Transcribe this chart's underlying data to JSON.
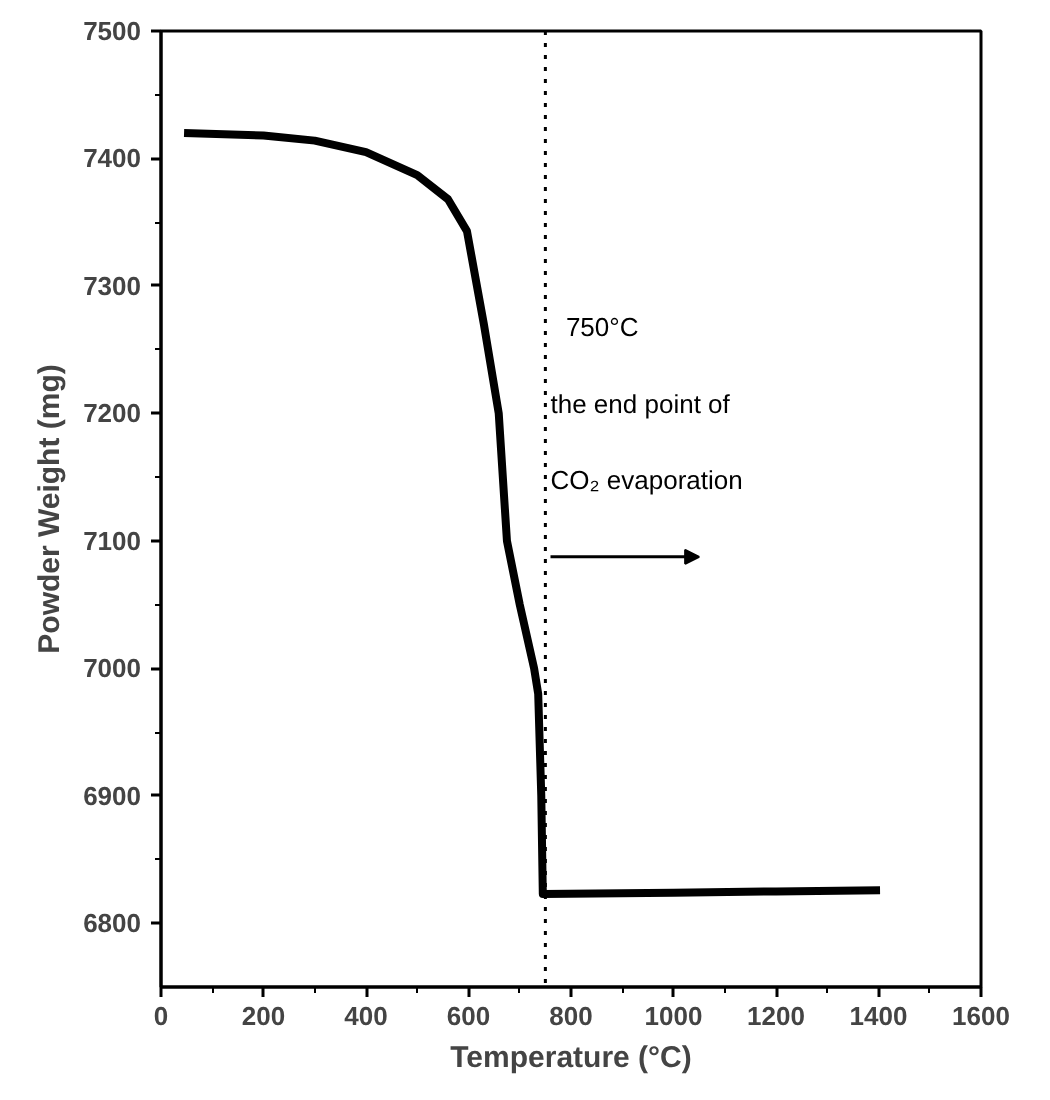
{
  "chart_data": {
    "type": "line",
    "xlabel": "Temperature (°C)",
    "ylabel": "Powder Weight (mg)",
    "x": [
      45,
      200,
      300,
      400,
      500,
      560,
      597,
      630,
      659,
      675,
      700,
      728,
      736,
      742,
      745,
      1000,
      1200,
      1403
    ],
    "series": [
      {
        "color": "#000000",
        "values": [
          7420,
          7418,
          7414,
          7405,
          7387,
          7368,
          7343,
          7270,
          7200,
          7100,
          7050,
          7000,
          6980,
          6900,
          6823,
          6824,
          6825,
          6826
        ]
      }
    ],
    "xlim": [
      0,
      1600
    ],
    "xticks": [
      0,
      200,
      400,
      600,
      800,
      1000,
      1200,
      1400,
      1600
    ],
    "ylim": [
      6750,
      7500
    ],
    "yticks": [
      6800,
      6900,
      7000,
      7100,
      7200,
      7300,
      7400,
      7500
    ],
    "grid": false,
    "marker": "none",
    "line_style": "solid",
    "ref_lines": [
      {
        "axis": "x",
        "value": 750,
        "line_style": "dotted",
        "color": "#000000"
      }
    ],
    "annotations": [
      "750°C",
      "the end point of",
      "CO₂ evaporation"
    ]
  }
}
